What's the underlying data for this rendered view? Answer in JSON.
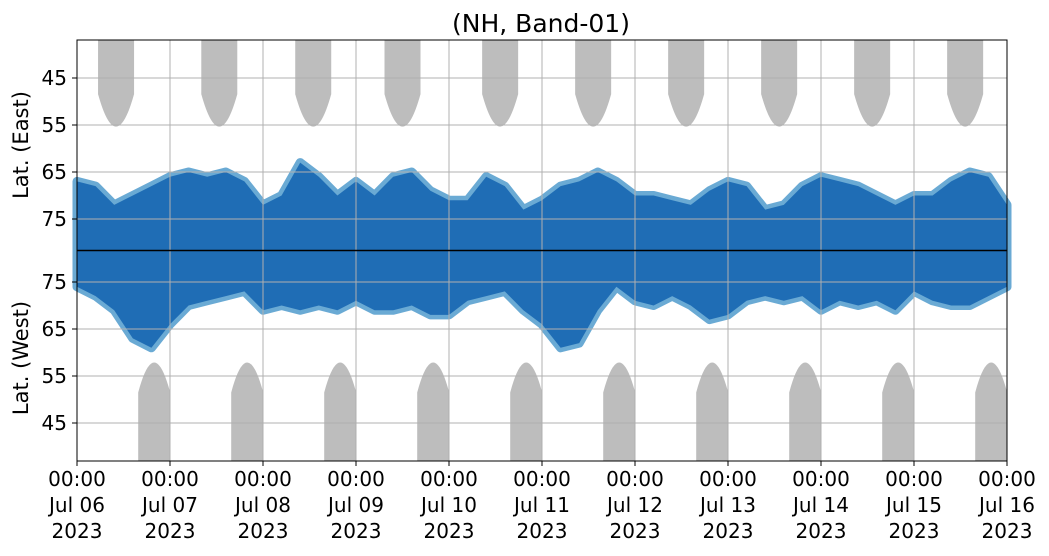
{
  "chart_data": {
    "type": "heatmap",
    "title": "(NH, Band-01)",
    "ylabel_top": "Lat. (East)",
    "ylabel_bottom": "Lat. (West)",
    "x_ticks": [
      {
        "day": 0,
        "time": "00:00",
        "date": "Jul 06",
        "year": "2023"
      },
      {
        "day": 1,
        "time": "00:00",
        "date": "Jul 07",
        "year": "2023"
      },
      {
        "day": 2,
        "time": "00:00",
        "date": "Jul 08",
        "year": "2023"
      },
      {
        "day": 3,
        "time": "00:00",
        "date": "Jul 09",
        "year": "2023"
      },
      {
        "day": 4,
        "time": "00:00",
        "date": "Jul 10",
        "year": "2023"
      },
      {
        "day": 5,
        "time": "00:00",
        "date": "Jul 11",
        "year": "2023"
      },
      {
        "day": 6,
        "time": "00:00",
        "date": "Jul 12",
        "year": "2023"
      },
      {
        "day": 7,
        "time": "00:00",
        "date": "Jul 13",
        "year": "2023"
      },
      {
        "day": 8,
        "time": "00:00",
        "date": "Jul 14",
        "year": "2023"
      },
      {
        "day": 9,
        "time": "00:00",
        "date": "Jul 15",
        "year": "2023"
      },
      {
        "day": 10,
        "time": "00:00",
        "date": "Jul 16",
        "year": "2023"
      }
    ],
    "y_ticks_top": [
      45,
      55,
      65,
      75
    ],
    "y_ticks_bottom": [
      75,
      65,
      55,
      45
    ],
    "grid": true,
    "colors": {
      "dense": "#1f6db5",
      "sparse": "#6aaad4",
      "no_data": "#bdbdbd",
      "grid": "#b0b0b0",
      "divider": "#000000"
    },
    "east_band_edge": [
      67,
      68,
      72,
      70,
      68,
      66,
      65,
      66,
      65,
      67,
      72,
      70,
      63,
      66,
      70,
      67,
      70,
      66,
      65,
      69,
      71,
      71,
      66,
      68,
      73,
      71,
      68,
      67,
      65,
      67,
      70,
      70,
      71,
      72,
      69,
      67,
      68,
      73,
      72,
      68,
      66,
      67,
      68,
      70,
      72,
      70,
      70,
      67,
      65,
      66,
      72
    ],
    "west_band_edge": [
      74,
      72,
      69,
      63,
      61,
      66,
      70,
      71,
      72,
      73,
      69,
      70,
      69,
      70,
      69,
      71,
      69,
      69,
      70,
      68,
      68,
      71,
      72,
      73,
      69,
      66,
      61,
      62,
      69,
      74,
      71,
      70,
      72,
      70,
      67,
      68,
      71,
      72,
      71,
      72,
      69,
      71,
      70,
      71,
      69,
      73,
      71,
      70,
      70,
      72,
      74
    ]
  }
}
